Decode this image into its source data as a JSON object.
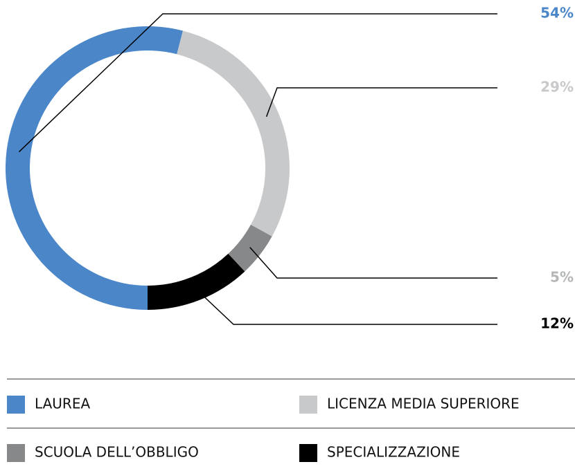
{
  "chart_data": {
    "type": "donut",
    "categories": [
      "LAUREA",
      "LICENZA MEDIA SUPERIORE",
      "SCUOLA DELL’OBBLIGO",
      "SPECIALIZZAZIONE"
    ],
    "values": [
      54,
      29,
      5,
      12
    ],
    "value_labels": [
      "54%",
      "29%",
      "5%",
      "12%"
    ],
    "colors": [
      "#4a86c8",
      "#c8c9cb",
      "#87888a",
      "#000000"
    ]
  }
}
